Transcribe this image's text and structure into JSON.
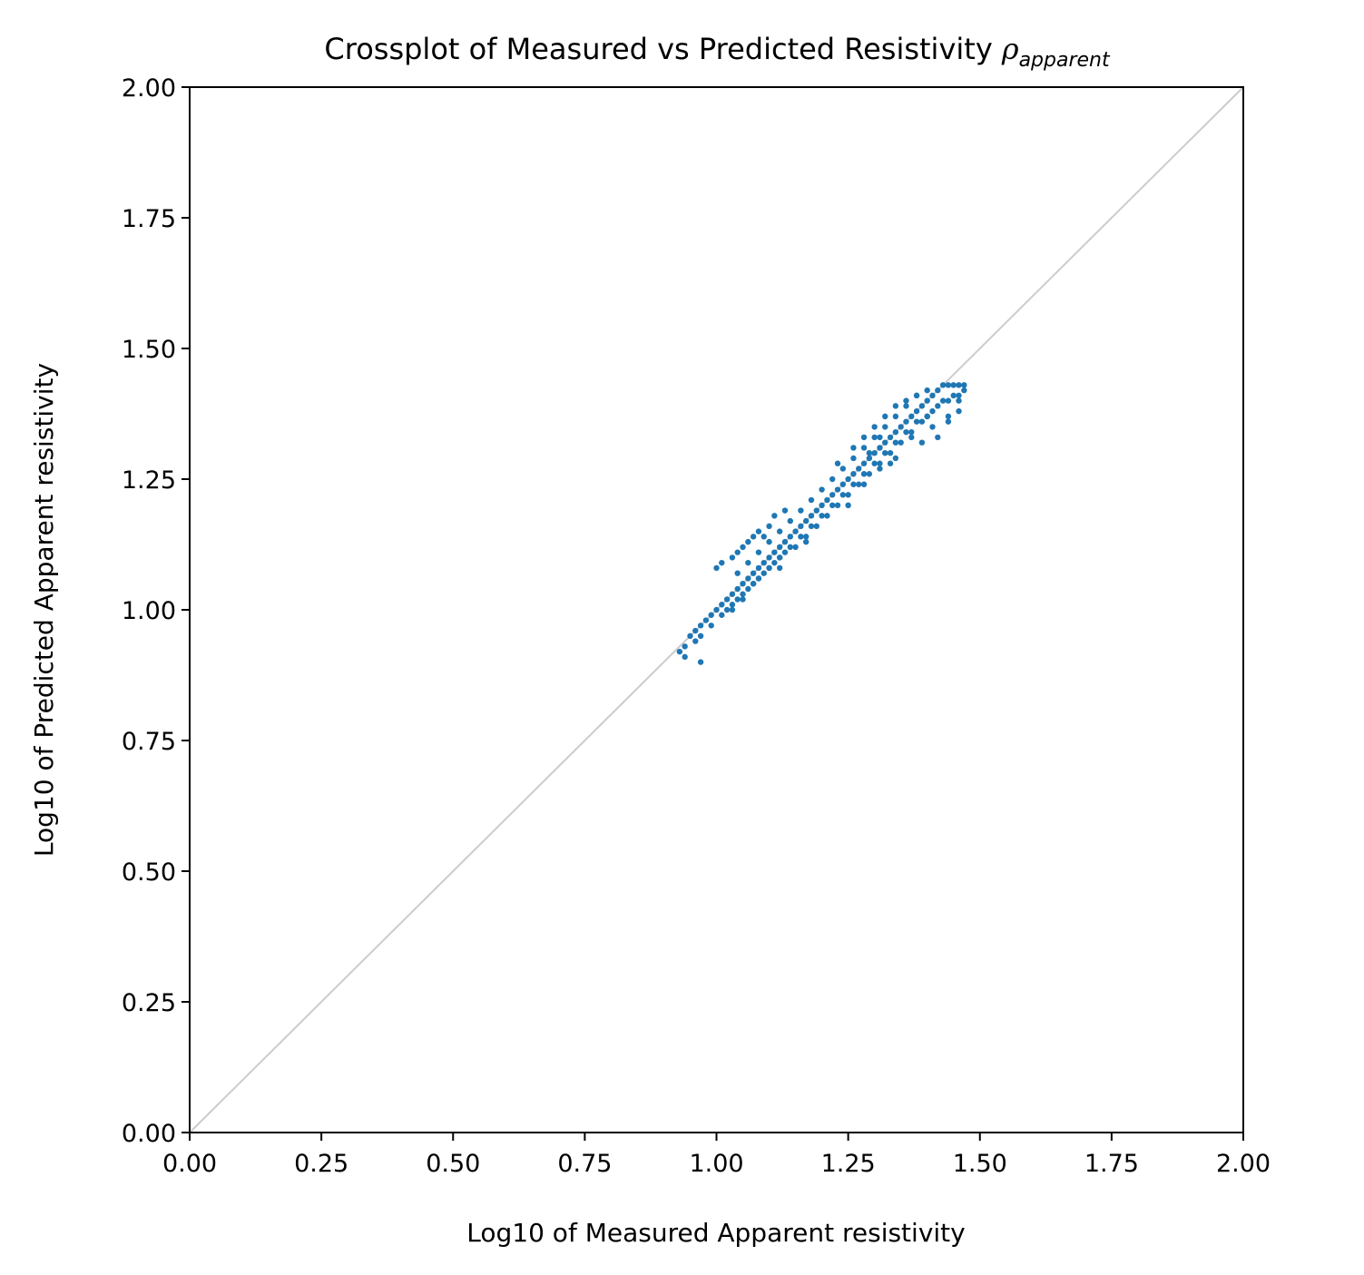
{
  "chart_data": {
    "type": "scatter",
    "title": "Crossplot of Measured vs Predicted Resistivity",
    "title_symbol": "ρ",
    "title_subscript": "apparent",
    "xlabel": "Log10 of Measured Apparent resistivity",
    "ylabel": "Log10 of Predicted Apparent resistivity",
    "xlim": [
      0,
      2
    ],
    "ylim": [
      0,
      2
    ],
    "xticks": [
      "0.00",
      "0.25",
      "0.50",
      "0.75",
      "1.00",
      "1.25",
      "1.50",
      "1.75",
      "2.00"
    ],
    "yticks": [
      "0.00",
      "0.25",
      "0.50",
      "0.75",
      "1.00",
      "1.25",
      "1.50",
      "1.75",
      "2.00"
    ],
    "grid": false,
    "reference_line": {
      "x": [
        0,
        2
      ],
      "y": [
        0,
        2
      ],
      "color": "#cccccc"
    },
    "series": [
      {
        "color": "#1f77b4",
        "x": [
          0.93,
          0.94,
          0.95,
          0.96,
          0.97,
          0.98,
          0.99,
          1.0,
          1.01,
          1.02,
          1.03,
          1.04,
          1.05,
          1.06,
          1.07,
          1.08,
          1.09,
          1.1,
          1.11,
          1.12,
          1.13,
          1.14,
          1.15,
          1.16,
          1.17,
          1.18,
          1.19,
          1.2,
          1.21,
          1.22,
          1.23,
          1.24,
          1.25,
          1.26,
          1.27,
          1.28,
          1.29,
          1.3,
          1.31,
          1.32,
          1.33,
          1.34,
          1.35,
          1.36,
          1.37,
          1.38,
          1.39,
          1.4,
          1.41,
          1.42,
          1.43,
          1.44,
          1.45,
          1.46,
          1.47,
          0.94,
          0.96,
          0.97,
          0.99,
          1.01,
          1.02,
          1.03,
          1.04,
          1.05,
          1.06,
          1.07,
          1.08,
          1.09,
          1.1,
          1.11,
          1.12,
          1.13,
          1.15,
          1.17,
          1.19,
          1.21,
          1.23,
          1.25,
          1.27,
          1.29,
          1.31,
          1.33,
          1.35,
          1.37,
          1.39,
          1.41,
          1.43,
          1.45,
          1.0,
          1.01,
          1.03,
          1.04,
          1.05,
          1.06,
          1.07,
          1.08,
          1.09,
          1.1,
          1.11,
          1.13,
          1.23,
          1.26,
          1.28,
          1.3,
          1.32,
          1.34,
          1.36,
          1.38,
          1.03,
          1.05,
          1.07,
          1.08,
          1.1,
          1.12,
          1.14,
          1.16,
          1.18,
          1.2,
          1.22,
          1.24,
          1.26,
          1.28,
          1.3,
          1.32,
          1.34,
          1.36,
          1.38,
          1.4,
          1.42,
          1.44,
          1.46,
          1.47,
          1.46,
          1.44,
          1.42,
          1.41,
          1.39,
          1.33,
          1.31,
          1.29,
          1.04,
          1.06,
          1.08,
          1.1,
          1.12,
          1.14,
          1.16,
          1.18,
          1.2,
          1.22,
          1.24,
          1.26,
          1.28,
          1.3,
          1.32,
          1.34,
          1.36,
          1.38,
          1.4,
          0.97,
          1.12,
          1.17,
          1.25,
          1.28,
          1.31,
          1.34,
          1.37,
          1.4,
          1.44,
          1.46
        ],
        "y": [
          0.92,
          0.93,
          0.95,
          0.96,
          0.97,
          0.98,
          0.99,
          1.0,
          1.01,
          1.02,
          1.03,
          1.04,
          1.05,
          1.06,
          1.07,
          1.08,
          1.09,
          1.1,
          1.11,
          1.12,
          1.13,
          1.14,
          1.15,
          1.16,
          1.17,
          1.18,
          1.19,
          1.2,
          1.21,
          1.22,
          1.23,
          1.24,
          1.25,
          1.26,
          1.27,
          1.28,
          1.29,
          1.3,
          1.31,
          1.32,
          1.33,
          1.34,
          1.35,
          1.36,
          1.37,
          1.38,
          1.39,
          1.4,
          1.41,
          1.42,
          1.43,
          1.43,
          1.43,
          1.43,
          1.43,
          0.91,
          0.94,
          0.95,
          0.97,
          0.99,
          1.0,
          1.01,
          1.02,
          1.03,
          1.04,
          1.05,
          1.06,
          1.07,
          1.08,
          1.09,
          1.1,
          1.11,
          1.12,
          1.14,
          1.16,
          1.18,
          1.2,
          1.22,
          1.24,
          1.26,
          1.28,
          1.3,
          1.32,
          1.34,
          1.36,
          1.38,
          1.4,
          1.41,
          1.08,
          1.09,
          1.1,
          1.11,
          1.12,
          1.13,
          1.14,
          1.15,
          1.14,
          1.16,
          1.18,
          1.19,
          1.28,
          1.31,
          1.33,
          1.35,
          1.37,
          1.39,
          1.4,
          1.41,
          1.0,
          1.02,
          1.05,
          1.06,
          1.08,
          1.1,
          1.12,
          1.14,
          1.16,
          1.18,
          1.2,
          1.22,
          1.24,
          1.26,
          1.28,
          1.3,
          1.32,
          1.34,
          1.36,
          1.37,
          1.39,
          1.4,
          1.41,
          1.42,
          1.38,
          1.37,
          1.33,
          1.35,
          1.32,
          1.28,
          1.33,
          1.3,
          1.07,
          1.09,
          1.11,
          1.13,
          1.15,
          1.17,
          1.19,
          1.21,
          1.23,
          1.25,
          1.27,
          1.29,
          1.31,
          1.33,
          1.35,
          1.37,
          1.39,
          1.41,
          1.42,
          0.9,
          1.08,
          1.13,
          1.2,
          1.24,
          1.27,
          1.29,
          1.33,
          1.37,
          1.36,
          1.4
        ]
      }
    ]
  }
}
